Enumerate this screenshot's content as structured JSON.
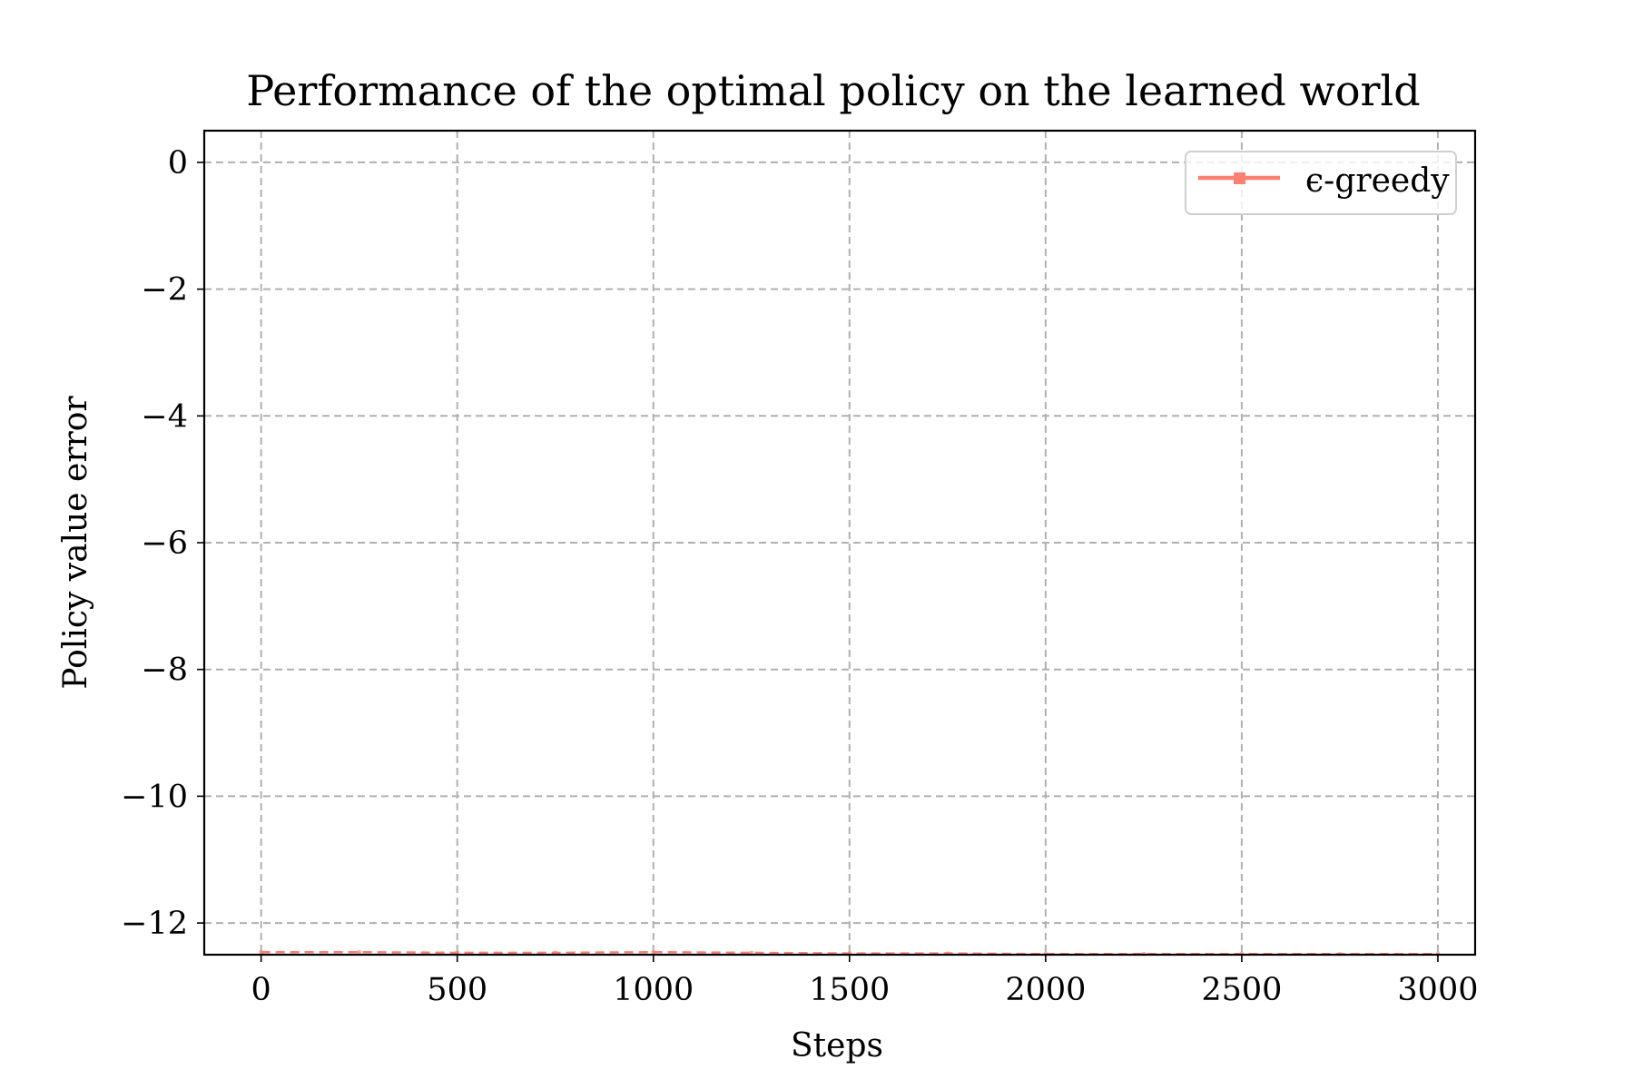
{
  "chart_data": {
    "type": "line",
    "title": "Performance of the optimal policy on the learned world",
    "xlabel": "Steps",
    "ylabel": "Policy value error",
    "xlim": [
      -145,
      3095
    ],
    "ylim": [
      -12.5,
      0.5
    ],
    "x_ticks": [
      0,
      500,
      1000,
      1500,
      2000,
      2500,
      3000
    ],
    "x_tick_labels": [
      "0",
      "500",
      "1000",
      "1500",
      "2000",
      "2500",
      "3000"
    ],
    "y_ticks": [
      0,
      -2,
      -4,
      -6,
      -8,
      -10,
      -12
    ],
    "y_tick_labels": [
      "0",
      "−2",
      "−4",
      "−6",
      "−8",
      "−10",
      "−12"
    ],
    "grid": true,
    "legend_position": "top-right",
    "series": [
      {
        "name": "ϵ-greedy",
        "color": "#fa8072",
        "marker": "square",
        "x": [
          0,
          250,
          500,
          750,
          1000,
          1250,
          1500,
          1750,
          2000,
          2250,
          2500,
          2750,
          3000
        ],
        "y": [
          -12.46,
          -12.46,
          -12.47,
          -12.47,
          -12.46,
          -12.47,
          -12.48,
          -12.48,
          -12.49,
          -12.49,
          -12.49,
          -12.49,
          -12.49
        ]
      }
    ]
  }
}
